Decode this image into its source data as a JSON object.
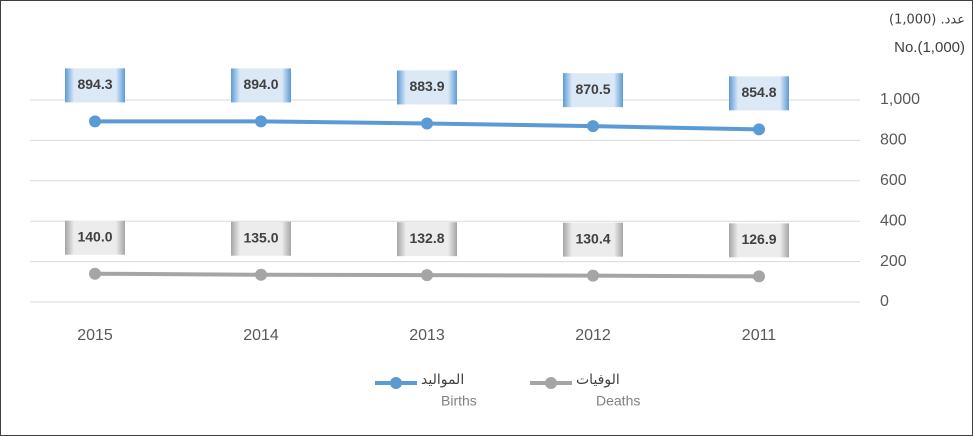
{
  "chart_data": {
    "type": "line",
    "y_axis_label_ar": "عدد. (1,000)",
    "y_axis_label": "No.(1,000)",
    "categories": [
      "2015",
      "2014",
      "2013",
      "2012",
      "2011"
    ],
    "series": [
      {
        "name": "Births",
        "name_ar": "المواليد",
        "color": "#5b9bd5",
        "values": [
          894.3,
          894.0,
          883.9,
          870.5,
          854.8
        ],
        "value_labels": [
          "894.3",
          "894.0",
          "883.9",
          "870.5",
          "854.8"
        ]
      },
      {
        "name": "Deaths",
        "name_ar": "الوفيات",
        "color": "#a5a5a5",
        "values": [
          140.0,
          135.0,
          132.8,
          130.4,
          126.9
        ],
        "value_labels": [
          "140.0",
          "135.0",
          "132.8",
          "130.4",
          "126.9"
        ]
      }
    ],
    "ylim": [
      0,
      1000
    ],
    "yticks": [
      0,
      200,
      400,
      600,
      800,
      {
        "value": 1000,
        "label": "1,000"
      }
    ],
    "grid": true
  }
}
